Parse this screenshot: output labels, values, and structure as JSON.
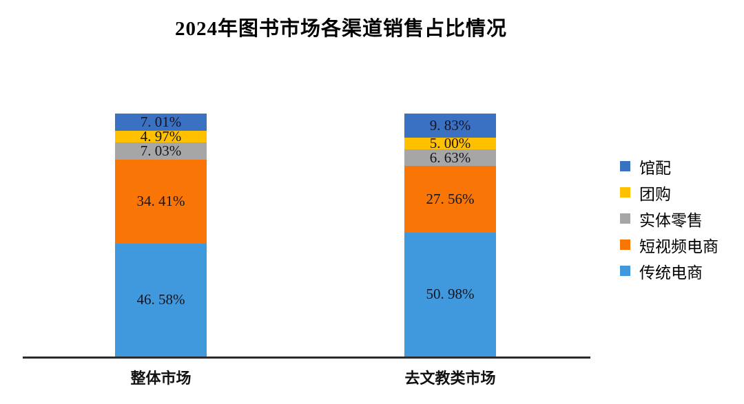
{
  "chart_data": {
    "type": "bar",
    "subtype": "percent-stacked-column",
    "title": "2024年图书市场各渠道销售占比情况",
    "categories": [
      "整体市场",
      "去文教类市场"
    ],
    "series": [
      {
        "name": "馆配",
        "color": "#3A71C2",
        "values": [
          7.01,
          9.83
        ],
        "labels": [
          "7. 01%",
          "9. 83%"
        ]
      },
      {
        "name": "团购",
        "color": "#FFC000",
        "values": [
          4.97,
          5.0
        ],
        "labels": [
          "4. 97%",
          "5. 00%"
        ]
      },
      {
        "name": "实体零售",
        "color": "#A6A6A6",
        "values": [
          7.03,
          6.63
        ],
        "labels": [
          "7. 03%",
          "6. 63%"
        ]
      },
      {
        "name": "短视频电商",
        "color": "#F87506",
        "values": [
          34.41,
          27.56
        ],
        "labels": [
          "34. 41%",
          "27. 56%"
        ]
      },
      {
        "name": "传统电商",
        "color": "#4099DC",
        "values": [
          46.58,
          50.98
        ],
        "labels": [
          "46. 58%",
          "50. 98%"
        ]
      }
    ],
    "legend_position": "right",
    "ylim": [
      0,
      100
    ],
    "grid": false,
    "axis_color": "#2B2B2B",
    "label_color": "#141422",
    "background": "#FFFFFF"
  }
}
